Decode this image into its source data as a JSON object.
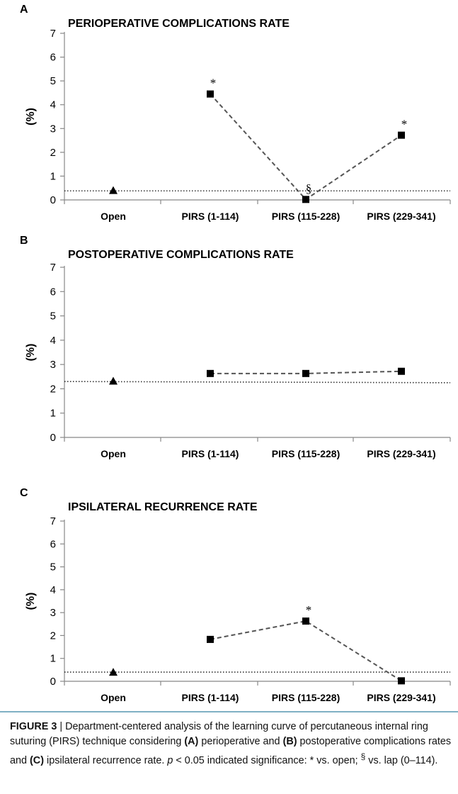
{
  "chart_data": [
    {
      "type": "line",
      "panel": "A",
      "title": "PERIOPERATIVE COMPLICATIONS RATE",
      "ylabel": "(%)",
      "xlabel": "",
      "ylim": [
        0,
        7
      ],
      "yticks": [
        0,
        1,
        2,
        3,
        4,
        5,
        6,
        7
      ],
      "categories": [
        "Open",
        "PIRS (1-114)",
        "PIRS (115-228)",
        "PIRS (229-341)"
      ],
      "series": [
        {
          "marker": "triangle",
          "values": [
            0.4,
            null,
            null,
            null
          ]
        },
        {
          "marker": "square",
          "style": "dashed",
          "values": [
            null,
            4.45,
            0.02,
            2.72
          ]
        }
      ],
      "reference_line": {
        "value": 0.38,
        "style": "dotted"
      },
      "annotations": [
        {
          "category": 1,
          "text": "*"
        },
        {
          "category": 2,
          "text": "§"
        },
        {
          "category": 3,
          "text": "*"
        }
      ],
      "grid": false
    },
    {
      "type": "line",
      "panel": "B",
      "title": "POSTOPERATIVE COMPLICATIONS RATE",
      "ylabel": "(%)",
      "xlabel": "",
      "ylim": [
        0,
        7
      ],
      "yticks": [
        0,
        1,
        2,
        3,
        4,
        5,
        6,
        7
      ],
      "categories": [
        "Open",
        "PIRS (1-114)",
        "PIRS (115-228)",
        "PIRS (229-341)"
      ],
      "series": [
        {
          "marker": "triangle",
          "values": [
            2.32,
            null,
            null,
            null
          ]
        },
        {
          "marker": "square",
          "style": "dashed",
          "values": [
            null,
            2.63,
            2.63,
            2.72
          ]
        }
      ],
      "reference_line": {
        "value_start": 2.3,
        "value_end": 2.25,
        "style": "dotted"
      },
      "annotations": [],
      "grid": false
    },
    {
      "type": "line",
      "panel": "C",
      "title": "IPSILATERAL RECURRENCE RATE",
      "ylabel": "(%)",
      "xlabel": "",
      "ylim": [
        0,
        7
      ],
      "yticks": [
        0,
        1,
        2,
        3,
        4,
        5,
        6,
        7
      ],
      "categories": [
        "Open",
        "PIRS (1-114)",
        "PIRS (115-228)",
        "PIRS (229-341)"
      ],
      "series": [
        {
          "marker": "triangle",
          "values": [
            0.4,
            null,
            null,
            null
          ]
        },
        {
          "marker": "square",
          "style": "dashed",
          "values": [
            null,
            1.83,
            2.63,
            0.02
          ]
        }
      ],
      "reference_line": {
        "value": 0.4,
        "style": "dotted"
      },
      "annotations": [
        {
          "category": 2,
          "text": "*"
        }
      ],
      "grid": false
    }
  ],
  "caption": {
    "figure_label": "FIGURE 3",
    "separator": " | ",
    "text_1": "Department-centered analysis of the learning curve of percutaneous internal ring suturing (PIRS) technique considering ",
    "ref_a": "(A)",
    "text_2": " perioperative and ",
    "ref_b": "(B)",
    "text_3": " postoperative complications rates and ",
    "ref_c": "(C)",
    "text_4": " ipsilateral recurrence rate. ",
    "p_symbol": "p",
    "text_5": " < 0.05 indicated significance: * vs. open; ",
    "section_sup": "§",
    "text_6": " vs. lap (0–114)."
  },
  "colors": {
    "marker": "#000000",
    "connector": "#555555",
    "reference": "#333333",
    "caption_rule": "#7fb0c4"
  }
}
